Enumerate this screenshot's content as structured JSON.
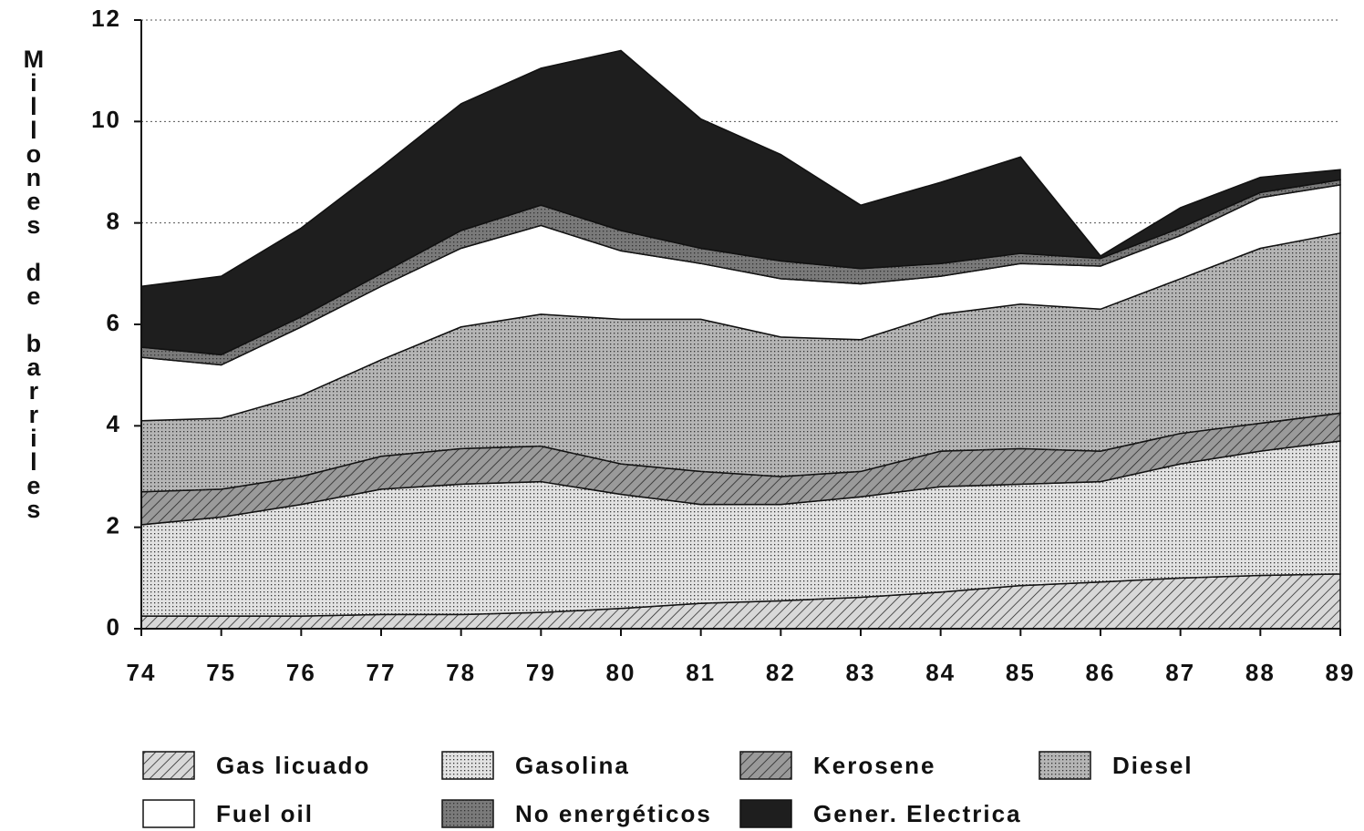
{
  "chart_data": {
    "type": "stacked_area",
    "y_label": "Millones de barriles",
    "categories": [
      "74",
      "75",
      "76",
      "77",
      "78",
      "79",
      "80",
      "81",
      "82",
      "83",
      "84",
      "85",
      "86",
      "87",
      "88",
      "89"
    ],
    "series": [
      {
        "name": "Gas licuado",
        "color": "#d8d8d8",
        "values": [
          0.25,
          0.25,
          0.25,
          0.28,
          0.28,
          0.32,
          0.4,
          0.5,
          0.55,
          0.62,
          0.72,
          0.85,
          0.92,
          1.0,
          1.05,
          1.08
        ]
      },
      {
        "name": "Gasolina",
        "color": "#e2e2e2",
        "values": [
          1.8,
          1.95,
          2.2,
          2.47,
          2.57,
          2.58,
          2.25,
          1.95,
          1.9,
          1.98,
          2.08,
          2.0,
          1.98,
          2.25,
          2.45,
          2.62
        ]
      },
      {
        "name": "Kerosene",
        "color": "#9a9a9a",
        "values": [
          0.65,
          0.55,
          0.55,
          0.65,
          0.7,
          0.7,
          0.6,
          0.65,
          0.55,
          0.5,
          0.7,
          0.7,
          0.6,
          0.6,
          0.55,
          0.55
        ]
      },
      {
        "name": "Diesel",
        "color": "#b5b5b5",
        "values": [
          1.4,
          1.4,
          1.6,
          1.9,
          2.4,
          2.6,
          2.85,
          3.0,
          2.75,
          2.6,
          2.7,
          2.85,
          2.8,
          3.05,
          3.45,
          3.55
        ]
      },
      {
        "name": "Fuel oil",
        "color": "#ffffff",
        "values": [
          1.25,
          1.05,
          1.35,
          1.45,
          1.55,
          1.75,
          1.35,
          1.1,
          1.15,
          1.1,
          0.75,
          0.8,
          0.85,
          0.85,
          1.0,
          0.95
        ]
      },
      {
        "name": "No energéticos",
        "color": "#7a7a7a",
        "values": [
          0.2,
          0.2,
          0.2,
          0.25,
          0.35,
          0.4,
          0.4,
          0.3,
          0.35,
          0.3,
          0.25,
          0.2,
          0.15,
          0.15,
          0.1,
          0.1
        ]
      },
      {
        "name": "Gener. Electrica",
        "color": "#1e1e1e",
        "values": [
          1.2,
          1.55,
          1.75,
          2.1,
          2.5,
          2.7,
          3.55,
          2.55,
          2.1,
          1.25,
          1.6,
          1.9,
          0.05,
          0.4,
          0.3,
          0.2
        ]
      }
    ],
    "ylim": [
      0,
      12
    ],
    "yticks": [
      0,
      2,
      4,
      6,
      8,
      10,
      12
    ],
    "grid": true
  }
}
